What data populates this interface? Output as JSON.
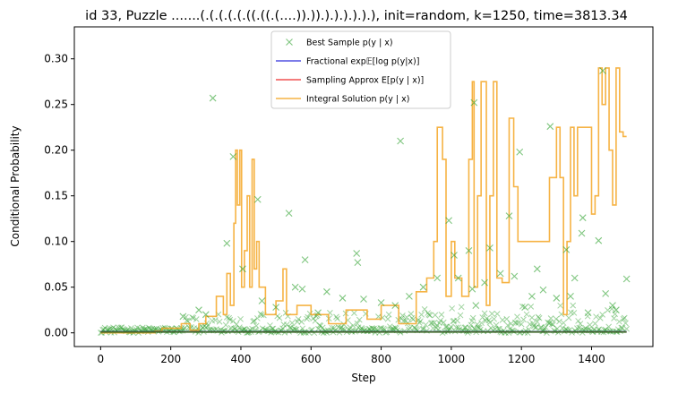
{
  "chart_data": {
    "type": "line",
    "title": "id 33, Puzzle .......(.(.(.(.(.((.((.(....)).)).).).).).).), init=random, k=1250, time=3813.34",
    "xlabel": "Step",
    "ylabel": "Conditional Probability",
    "xlim": [
      -75,
      1575
    ],
    "ylim": [
      -0.015,
      0.335
    ],
    "x_ticks": [
      0,
      200,
      400,
      600,
      800,
      1000,
      1200,
      1400
    ],
    "x_tick_labels": [
      "0",
      "200",
      "400",
      "600",
      "800",
      "1000",
      "1200",
      "1400"
    ],
    "y_ticks": [
      0.0,
      0.05,
      0.1,
      0.15,
      0.2,
      0.25,
      0.3
    ],
    "y_tick_labels": [
      "0.00",
      "0.05",
      "0.10",
      "0.15",
      "0.20",
      "0.25",
      "0.30"
    ],
    "grid": false,
    "legend_position": "upper center",
    "series": [
      {
        "name": "Best Sample p(y | x)",
        "kind": "markers",
        "marker": "x",
        "color": "#2ca02c",
        "points": [
          [
            320,
            0.257
          ],
          [
            378,
            0.193
          ],
          [
            360,
            0.098
          ],
          [
            448,
            0.146
          ],
          [
            537,
            0.131
          ],
          [
            855,
            0.21
          ],
          [
            1065,
            0.252
          ],
          [
            1282,
            0.226
          ],
          [
            1195,
            0.198
          ],
          [
            1432,
            0.287
          ],
          [
            993,
            0.123
          ],
          [
            1165,
            0.128
          ],
          [
            1375,
            0.126
          ],
          [
            1372,
            0.109
          ],
          [
            1420,
            0.101
          ],
          [
            583,
            0.08
          ],
          [
            730,
            0.087
          ],
          [
            733,
            0.077
          ],
          [
            1050,
            0.09
          ],
          [
            1245,
            0.07
          ],
          [
            1328,
            0.091
          ],
          [
            1008,
            0.085
          ],
          [
            1110,
            0.093
          ],
          [
            235,
            0.018
          ],
          [
            405,
            0.07
          ],
          [
            555,
            0.05
          ],
          [
            575,
            0.048
          ],
          [
            920,
            0.05
          ],
          [
            1020,
            0.06
          ],
          [
            1095,
            0.055
          ],
          [
            1180,
            0.062
          ],
          [
            1230,
            0.04
          ],
          [
            1262,
            0.047
          ],
          [
            1300,
            0.038
          ],
          [
            1340,
            0.04
          ],
          [
            1352,
            0.06
          ],
          [
            1440,
            0.043
          ],
          [
            1500,
            0.059
          ],
          [
            690,
            0.038
          ],
          [
            645,
            0.045
          ],
          [
            750,
            0.037
          ],
          [
            800,
            0.033
          ],
          [
            880,
            0.04
          ],
          [
            960,
            0.06
          ],
          [
            1070,
            0.03
          ],
          [
            1140,
            0.065
          ],
          [
            1210,
            0.028
          ],
          [
            460,
            0.035
          ],
          [
            500,
            0.028
          ],
          [
            280,
            0.025
          ],
          [
            300,
            0.02
          ],
          [
            620,
            0.022
          ],
          [
            840,
            0.03
          ],
          [
            1470,
            0.025
          ],
          [
            1390,
            0.022
          ],
          [
            1060,
            0.048
          ],
          [
            1460,
            0.03
          ]
        ]
      },
      {
        "name": "Fractional exp𝔼[log p(y|x)]",
        "kind": "line",
        "color": "#3333dd"
      },
      {
        "name": "Sampling Approx E[p(y | x)]",
        "kind": "line",
        "color": "#ee3333"
      },
      {
        "name": "Integral Solution p(y | x)",
        "kind": "step",
        "color": "#f5a623",
        "points": [
          [
            0,
            0.0
          ],
          [
            120,
            0.0
          ],
          [
            155,
            0.002
          ],
          [
            175,
            0.005
          ],
          [
            200,
            0.005
          ],
          [
            230,
            0.01
          ],
          [
            255,
            0.003
          ],
          [
            280,
            0.01
          ],
          [
            300,
            0.018
          ],
          [
            330,
            0.04
          ],
          [
            350,
            0.02
          ],
          [
            360,
            0.065
          ],
          [
            370,
            0.03
          ],
          [
            380,
            0.12
          ],
          [
            385,
            0.2
          ],
          [
            390,
            0.14
          ],
          [
            397,
            0.2
          ],
          [
            402,
            0.05
          ],
          [
            410,
            0.09
          ],
          [
            418,
            0.15
          ],
          [
            425,
            0.05
          ],
          [
            432,
            0.19
          ],
          [
            438,
            0.07
          ],
          [
            445,
            0.1
          ],
          [
            452,
            0.05
          ],
          [
            470,
            0.02
          ],
          [
            500,
            0.035
          ],
          [
            520,
            0.07
          ],
          [
            530,
            0.02
          ],
          [
            560,
            0.03
          ],
          [
            600,
            0.02
          ],
          [
            650,
            0.01
          ],
          [
            700,
            0.025
          ],
          [
            760,
            0.015
          ],
          [
            800,
            0.03
          ],
          [
            850,
            0.01
          ],
          [
            900,
            0.045
          ],
          [
            930,
            0.06
          ],
          [
            950,
            0.1
          ],
          [
            960,
            0.225
          ],
          [
            975,
            0.19
          ],
          [
            985,
            0.04
          ],
          [
            1000,
            0.1
          ],
          [
            1010,
            0.06
          ],
          [
            1030,
            0.04
          ],
          [
            1050,
            0.19
          ],
          [
            1060,
            0.275
          ],
          [
            1065,
            0.05
          ],
          [
            1075,
            0.15
          ],
          [
            1085,
            0.275
          ],
          [
            1100,
            0.03
          ],
          [
            1110,
            0.15
          ],
          [
            1120,
            0.275
          ],
          [
            1130,
            0.06
          ],
          [
            1145,
            0.055
          ],
          [
            1165,
            0.235
          ],
          [
            1178,
            0.16
          ],
          [
            1190,
            0.1
          ],
          [
            1205,
            0.1
          ],
          [
            1280,
            0.17
          ],
          [
            1300,
            0.225
          ],
          [
            1310,
            0.17
          ],
          [
            1320,
            0.02
          ],
          [
            1330,
            0.1
          ],
          [
            1340,
            0.225
          ],
          [
            1350,
            0.15
          ],
          [
            1360,
            0.225
          ],
          [
            1400,
            0.13
          ],
          [
            1410,
            0.15
          ],
          [
            1420,
            0.29
          ],
          [
            1430,
            0.25
          ],
          [
            1440,
            0.29
          ],
          [
            1450,
            0.2
          ],
          [
            1460,
            0.14
          ],
          [
            1470,
            0.29
          ],
          [
            1480,
            0.22
          ],
          [
            1490,
            0.215
          ],
          [
            1500,
            0.215
          ]
        ]
      }
    ],
    "legend": [
      {
        "label": "Best Sample p(y | x)",
        "style": "marker-x",
        "color": "#2ca02c"
      },
      {
        "label": "Fractional exp𝔼[log p(y|x)]",
        "style": "line",
        "color": "#3333dd"
      },
      {
        "label": "Sampling Approx E[p(y | x)]",
        "style": "line",
        "color": "#ee3333"
      },
      {
        "label": "Integral Solution p(y | x)",
        "style": "line",
        "color": "#f5a623"
      }
    ]
  }
}
